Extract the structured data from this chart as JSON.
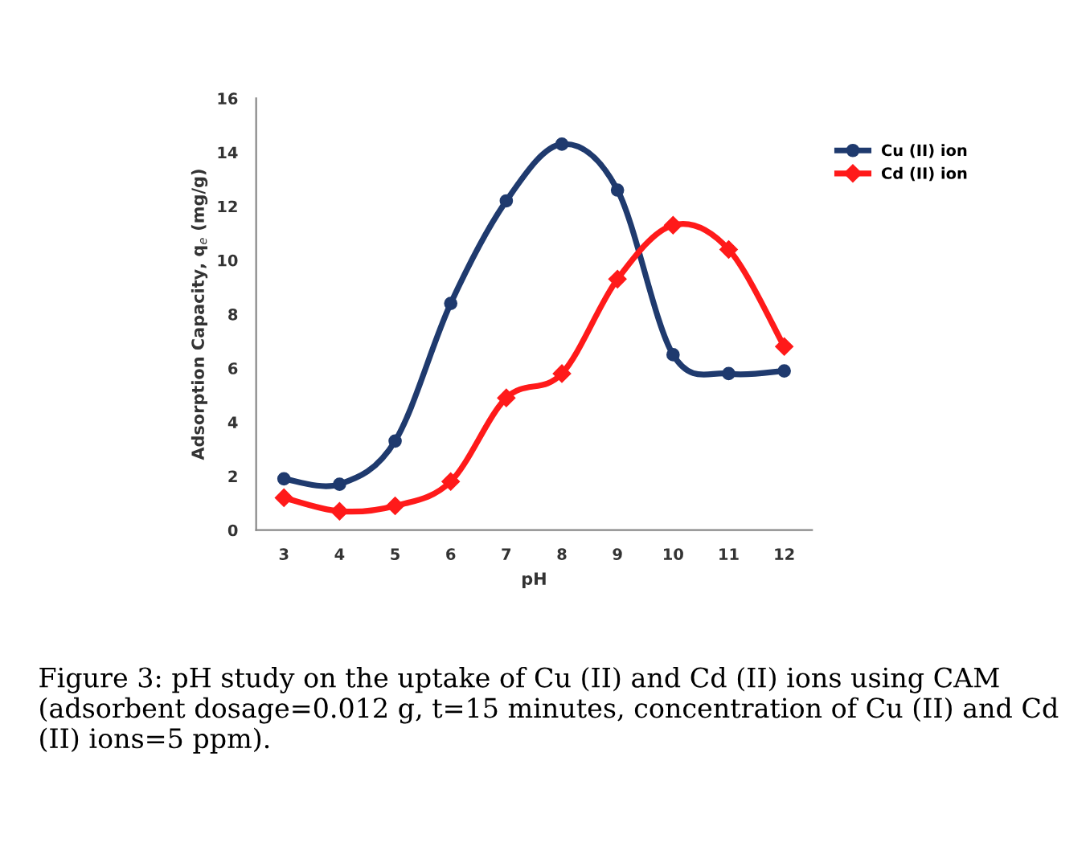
{
  "chart_data": {
    "type": "line",
    "xlabel": "pH",
    "ylabel": "Adsorption Capacity, q$_{e}$ (mg/g)",
    "categories": [
      "3",
      "4",
      "5",
      "6",
      "7",
      "8",
      "9",
      "10",
      "11",
      "12"
    ],
    "series": [
      {
        "name": "Cu (II) ion",
        "color": "#1f3a6e",
        "marker": "circle",
        "values": [
          1.9,
          1.7,
          3.3,
          8.4,
          12.2,
          14.3,
          12.6,
          6.5,
          5.8,
          5.9
        ]
      },
      {
        "name": "Cd (II) ion",
        "color": "#ff1a1a",
        "marker": "diamond",
        "values": [
          1.2,
          0.7,
          0.9,
          1.8,
          4.9,
          5.8,
          9.3,
          11.3,
          10.4,
          6.8
        ]
      }
    ],
    "ylim": [
      0,
      16
    ],
    "yticks": [
      0,
      2,
      4,
      6,
      8,
      10,
      12,
      14,
      16
    ],
    "grid": false,
    "legend": "right",
    "line_style": "solid",
    "annotations": [
      "Figure 3: pH study on the uptake of Cu (II) and Cd (II) ions using CAM (adsorbent dosage=0.012 g, t=15 minutes, concentration of Cu (II) and Cd (II) ions=5 ppm)."
    ]
  }
}
